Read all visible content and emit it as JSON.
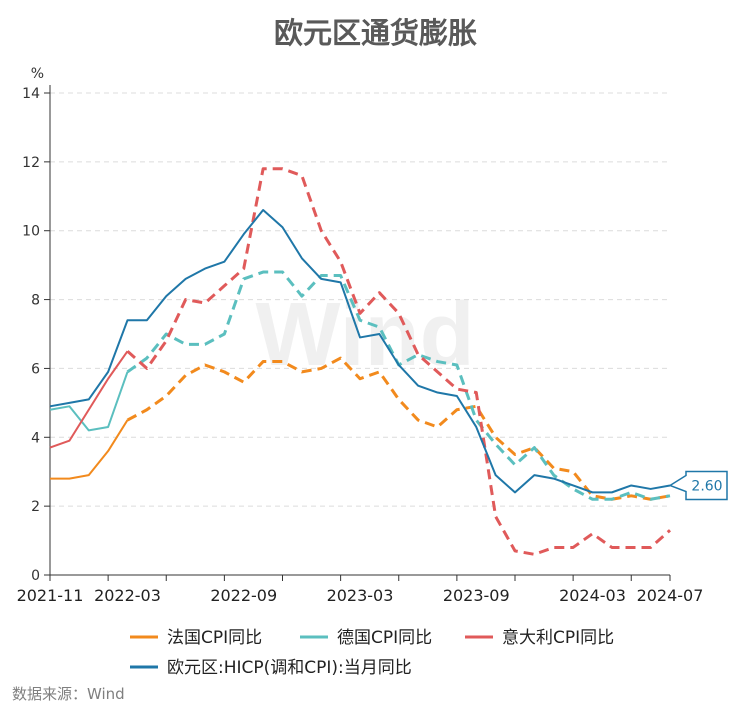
{
  "chart_data": {
    "type": "line",
    "title": "欧元区通货膨胀",
    "ylabel": "%",
    "xlabel": "",
    "ylim": [
      0,
      14
    ],
    "yticks": [
      0,
      2,
      4,
      6,
      8,
      10,
      12,
      14
    ],
    "grid": true,
    "legend_position": "bottom",
    "x": [
      "2021-11",
      "2021-12",
      "2022-01",
      "2022-02",
      "2022-03",
      "2022-04",
      "2022-05",
      "2022-06",
      "2022-07",
      "2022-08",
      "2022-09",
      "2022-10",
      "2022-11",
      "2022-12",
      "2023-01",
      "2023-02",
      "2023-03",
      "2023-04",
      "2023-05",
      "2023-06",
      "2023-07",
      "2023-08",
      "2023-09",
      "2023-10",
      "2023-11",
      "2023-12",
      "2024-01",
      "2024-02",
      "2024-03",
      "2024-04",
      "2024-05",
      "2024-06",
      "2024-07"
    ],
    "xtick_labels": [
      "2021-11",
      "2022-03",
      "2022-09",
      "2023-03",
      "2023-09",
      "2024-03",
      "2024-07"
    ],
    "series": [
      {
        "name": "法国CPI同比",
        "color": "#f28a1d",
        "values": [
          2.8,
          2.8,
          2.9,
          3.6,
          4.5,
          4.8,
          5.2,
          5.8,
          6.1,
          5.9,
          5.6,
          6.2,
          6.2,
          5.9,
          6.0,
          6.3,
          5.7,
          5.9,
          5.1,
          4.5,
          4.3,
          4.8,
          4.9,
          4.0,
          3.5,
          3.7,
          3.1,
          3.0,
          2.3,
          2.2,
          2.3,
          2.2,
          2.3
        ]
      },
      {
        "name": "德国CPI同比",
        "color": "#5bbfbf",
        "values": [
          4.8,
          4.9,
          4.2,
          4.3,
          5.9,
          6.3,
          7.0,
          6.7,
          6.7,
          7.0,
          8.6,
          8.8,
          8.8,
          8.1,
          8.7,
          8.7,
          7.4,
          7.2,
          6.1,
          6.4,
          6.2,
          6.1,
          4.5,
          3.8,
          3.2,
          3.7,
          2.9,
          2.5,
          2.2,
          2.2,
          2.4,
          2.2,
          2.3
        ]
      },
      {
        "name": "意大利CPI同比",
        "color": "#e05a5a",
        "values": [
          3.7,
          3.9,
          4.8,
          5.7,
          6.5,
          6.0,
          6.8,
          8.0,
          7.9,
          8.4,
          8.9,
          11.8,
          11.8,
          11.6,
          10.0,
          9.1,
          7.6,
          8.2,
          7.6,
          6.4,
          5.9,
          5.4,
          5.3,
          1.7,
          0.7,
          0.6,
          0.8,
          0.8,
          1.2,
          0.8,
          0.8,
          0.8,
          1.3
        ]
      },
      {
        "name": "欧元区:HICP(调和CPI):当月同比",
        "color": "#1f77a8",
        "values": [
          4.9,
          5.0,
          5.1,
          5.9,
          7.4,
          7.4,
          8.1,
          8.6,
          8.9,
          9.1,
          9.9,
          10.6,
          10.1,
          9.2,
          8.6,
          8.5,
          6.9,
          7.0,
          6.1,
          5.5,
          5.3,
          5.2,
          4.3,
          2.9,
          2.4,
          2.9,
          2.8,
          2.6,
          2.4,
          2.4,
          2.6,
          2.5,
          2.6
        ]
      }
    ],
    "annotation": "2.60"
  },
  "watermark": "Wind",
  "source": "数据来源：Wind"
}
